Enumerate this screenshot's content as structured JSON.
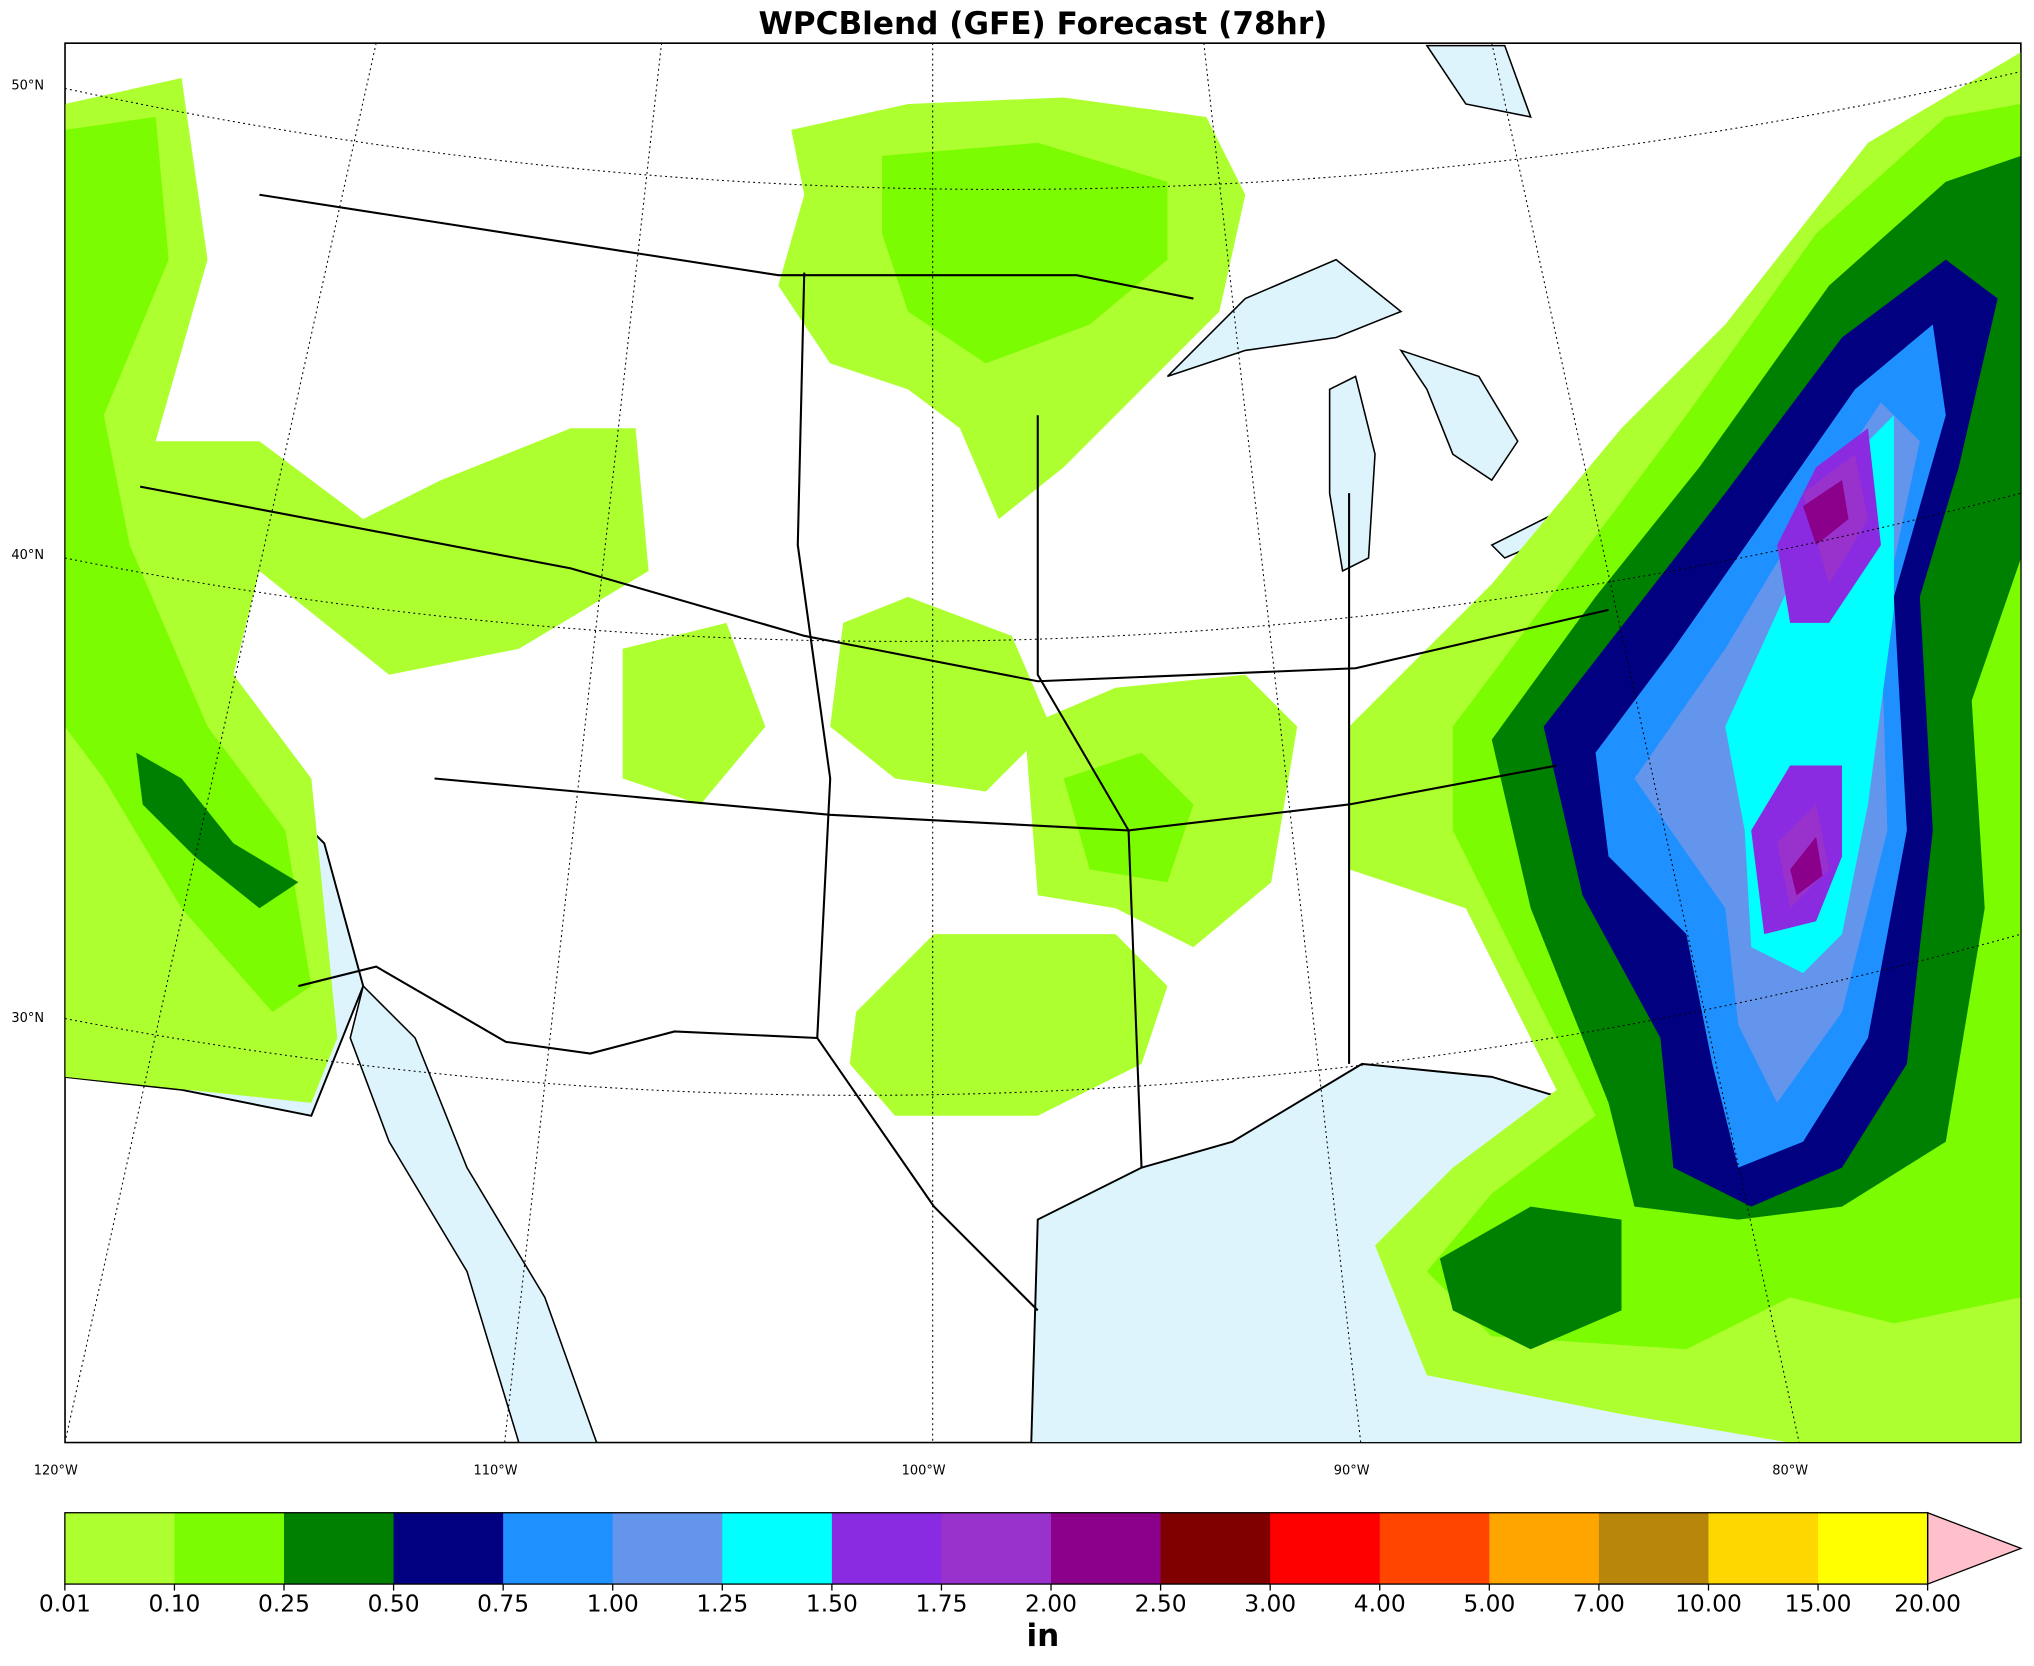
{
  "title": "WPCBlend (GFE) Forecast (78hr)",
  "map": {
    "lat_labels": [
      "50°N",
      "40°N",
      "30°N"
    ],
    "lon_labels": [
      "120°W",
      "110°W",
      "100°W",
      "90°W",
      "80°W"
    ]
  },
  "colorbar": {
    "label": "in",
    "ticks": [
      {
        "value": 0.01,
        "label": "0.01"
      },
      {
        "value": 0.1,
        "label": "0.10"
      },
      {
        "value": 0.25,
        "label": "0.25"
      },
      {
        "value": 0.5,
        "label": "0.50"
      },
      {
        "value": 0.75,
        "label": "0.75"
      },
      {
        "value": 1,
        "label": "1.00"
      },
      {
        "value": 1.25,
        "label": "1.25"
      },
      {
        "value": 1.5,
        "label": "1.50"
      },
      {
        "value": 1.75,
        "label": "1.75"
      },
      {
        "value": 2,
        "label": "2.00"
      },
      {
        "value": 2.5,
        "label": "2.50"
      },
      {
        "value": 3,
        "label": "3.00"
      },
      {
        "value": 4,
        "label": "4.00"
      },
      {
        "value": 5,
        "label": "5.00"
      },
      {
        "value": 7,
        "label": "7.00"
      },
      {
        "value": 10,
        "label": "10.00"
      },
      {
        "value": 15,
        "label": "15.00"
      },
      {
        "value": 20,
        "label": "20.00"
      }
    ],
    "colors": [
      "#adff2f",
      "#7cfc00",
      "#008000",
      "#000080",
      "#1e90ff",
      "#6495ed",
      "#00ffff",
      "#8a2be2",
      "#9932cc",
      "#8b008b",
      "#800000",
      "#ff0000",
      "#ff4500",
      "#ffa500",
      "#b8860b",
      "#ffd700",
      "#ffff00"
    ],
    "extend_color": "#ffc0cb"
  }
}
